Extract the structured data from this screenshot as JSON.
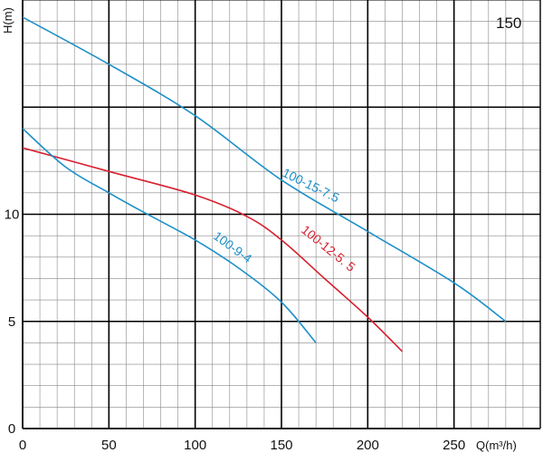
{
  "chart_data": {
    "type": "line",
    "title": "",
    "corner_label": "150",
    "xlabel": "Q(m³/h)",
    "ylabel": "H(m)",
    "xlim": [
      0,
      300
    ],
    "ylim": [
      0,
      20
    ],
    "x_ticks": [
      0,
      50,
      100,
      150,
      200,
      250
    ],
    "y_ticks": [
      0,
      5,
      10
    ],
    "major_grid_x": [
      50,
      100,
      150,
      200,
      250
    ],
    "major_grid_y": [
      5,
      10,
      15
    ],
    "minor_grid_x_step": 10,
    "minor_grid_y_step": 1,
    "grid": true,
    "legend": "none",
    "colors": {
      "blue": "#1E90C8",
      "red": "#D8202F",
      "grid": "#000000",
      "minor_grid": "#888888"
    },
    "series": [
      {
        "name": "100-15-7.5",
        "color": "#1E90C8",
        "label_x": 150,
        "label_y": 11.8,
        "label_angle": 26,
        "points": [
          [
            0,
            19.2
          ],
          [
            50,
            17.0
          ],
          [
            100,
            14.6
          ],
          [
            150,
            11.6
          ],
          [
            200,
            9.2
          ],
          [
            250,
            6.8
          ],
          [
            280,
            5.0
          ]
        ]
      },
      {
        "name": "100-12-5. 5",
        "color": "#D8202F",
        "label_x": 161,
        "label_y": 9.2,
        "label_angle": 39,
        "points": [
          [
            0,
            13.1
          ],
          [
            50,
            12.0
          ],
          [
            100,
            10.9
          ],
          [
            130,
            9.9
          ],
          [
            150,
            8.8
          ],
          [
            175,
            7.0
          ],
          [
            200,
            5.2
          ],
          [
            220,
            3.6
          ]
        ]
      },
      {
        "name": "100-9-4",
        "color": "#1E90C8",
        "label_x": 110,
        "label_y": 8.9,
        "label_angle": 36,
        "points": [
          [
            0,
            14.0
          ],
          [
            25,
            12.2
          ],
          [
            50,
            11.0
          ],
          [
            70,
            10.1
          ],
          [
            100,
            8.8
          ],
          [
            125,
            7.5
          ],
          [
            150,
            5.9
          ],
          [
            170,
            4.0
          ]
        ]
      }
    ]
  }
}
